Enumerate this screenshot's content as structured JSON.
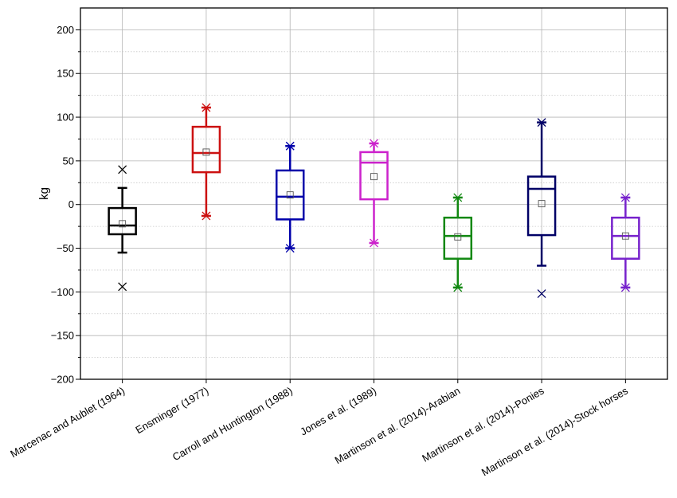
{
  "chart_data": {
    "type": "box",
    "title": "",
    "xlabel": "",
    "ylabel": "kg",
    "ylim": [
      -200,
      225
    ],
    "y_ticks": [
      -200,
      -150,
      -100,
      -50,
      0,
      50,
      100,
      150,
      200
    ],
    "y_tick_labels": [
      "−200",
      "−150",
      "−100",
      "−50",
      "0",
      "50",
      "100",
      "150",
      "200"
    ],
    "grid": true,
    "categories": [
      "Marcenac and Aublet (1964)",
      "Ensminger (1977)",
      "Carroll and Huntington (1988)",
      "Jones et al. (1989)",
      "Martinson et al. (2014)-Arabian",
      "Martinson et al. (2014)-Ponies",
      "Martinson et al. (2014)-Stock horses"
    ],
    "series": [
      {
        "color": "#000000",
        "whisker_low": -55,
        "q1": -34,
        "median": -24,
        "q3": -4,
        "whisker_high": 19,
        "mean": -22,
        "min": -94,
        "max": 40
      },
      {
        "color": "#cc1111",
        "whisker_low": -13,
        "q1": 37,
        "median": 59,
        "q3": 89,
        "whisker_high": 111,
        "mean": 60,
        "min": -13,
        "max": 111
      },
      {
        "color": "#0000aa",
        "whisker_low": -50,
        "q1": -17,
        "median": 9,
        "q3": 39,
        "whisker_high": 67,
        "mean": 11,
        "min": -50,
        "max": 67
      },
      {
        "color": "#cc22cc",
        "whisker_low": -44,
        "q1": 6,
        "median": 48,
        "q3": 60,
        "whisker_high": 70,
        "mean": 32,
        "min": -44,
        "max": 70
      },
      {
        "color": "#118811",
        "whisker_low": -95,
        "q1": -62,
        "median": -36,
        "q3": -15,
        "whisker_high": 8,
        "mean": -37,
        "min": -95,
        "max": 8
      },
      {
        "color": "#000066",
        "whisker_low": -70,
        "q1": -35,
        "median": 18,
        "q3": 32,
        "whisker_high": 94,
        "mean": 1,
        "min": -102,
        "max": 94
      },
      {
        "color": "#7722cc",
        "whisker_low": -95,
        "q1": -62,
        "median": -36,
        "q3": -15,
        "whisker_high": 8,
        "mean": -36,
        "min": -95,
        "max": 8
      }
    ]
  }
}
